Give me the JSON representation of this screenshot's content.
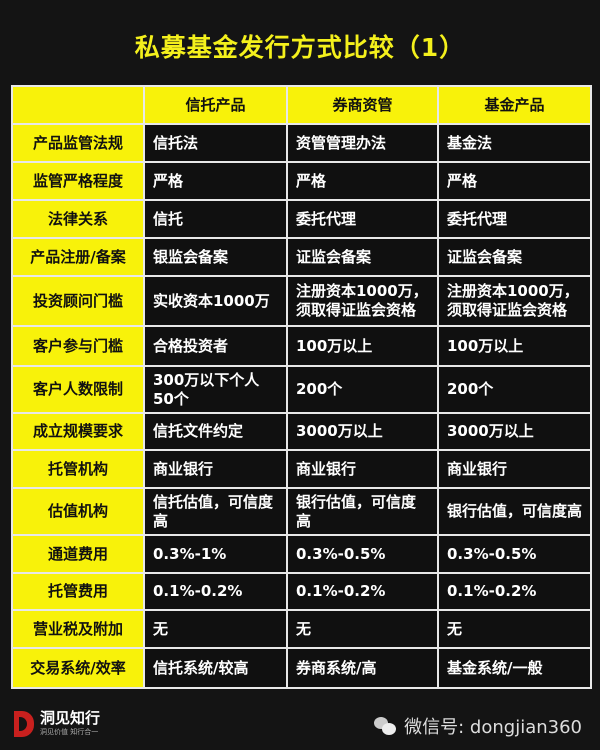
{
  "title": "私募基金发行方式比较（1）",
  "table": {
    "headers": [
      "",
      "信托产品",
      "券商资管",
      "基金产品"
    ],
    "rows": [
      [
        "产品监管法规",
        "信托法",
        "资管管理办法",
        "基金法"
      ],
      [
        "监管严格程度",
        "严格",
        "严格",
        "严格"
      ],
      [
        "法律关系",
        "信托",
        "委托代理",
        "委托代理"
      ],
      [
        "产品注册/备案",
        "银监会备案",
        "证监会备案",
        "证监会备案"
      ],
      [
        "投资顾问门槛",
        "实收资本1000万",
        "注册资本1000万，须取得证监会资格",
        "注册资本1000万，须取得证监会资格"
      ],
      [
        "客户参与门槛",
        "合格投资者",
        "100万以上",
        "100万以上"
      ],
      [
        "客户人数限制",
        "300万以下个人50个",
        "200个",
        "200个"
      ],
      [
        "成立规模要求",
        "信托文件约定",
        "3000万以上",
        "3000万以上"
      ],
      [
        "托管机构",
        "商业银行",
        "商业银行",
        "商业银行"
      ],
      [
        "估值机构",
        "信托估值，可信度高",
        "银行估值，可信度高",
        "银行估值，可信度高"
      ],
      [
        "通道费用",
        "0.3%-1%",
        "0.3%-0.5%",
        "0.3%-0.5%"
      ],
      [
        "托管费用",
        "0.1%-0.2%",
        "0.1%-0.2%",
        "0.1%-0.2%"
      ],
      [
        "营业税及附加",
        "无",
        "无",
        "无"
      ],
      [
        "交易系统/效率",
        "信托系统/较高",
        "券商系统/高",
        "基金系统/一般"
      ]
    ]
  },
  "footer": {
    "logo_name": "洞见知行",
    "logo_slogan": "洞见价值 知行合一",
    "wechat_icon": "wechat-icon",
    "wechat_id": "微信号: dongjian360"
  },
  "colors": {
    "accent": "#f8f20a",
    "background": "#141414",
    "title": "#f4f01c"
  }
}
